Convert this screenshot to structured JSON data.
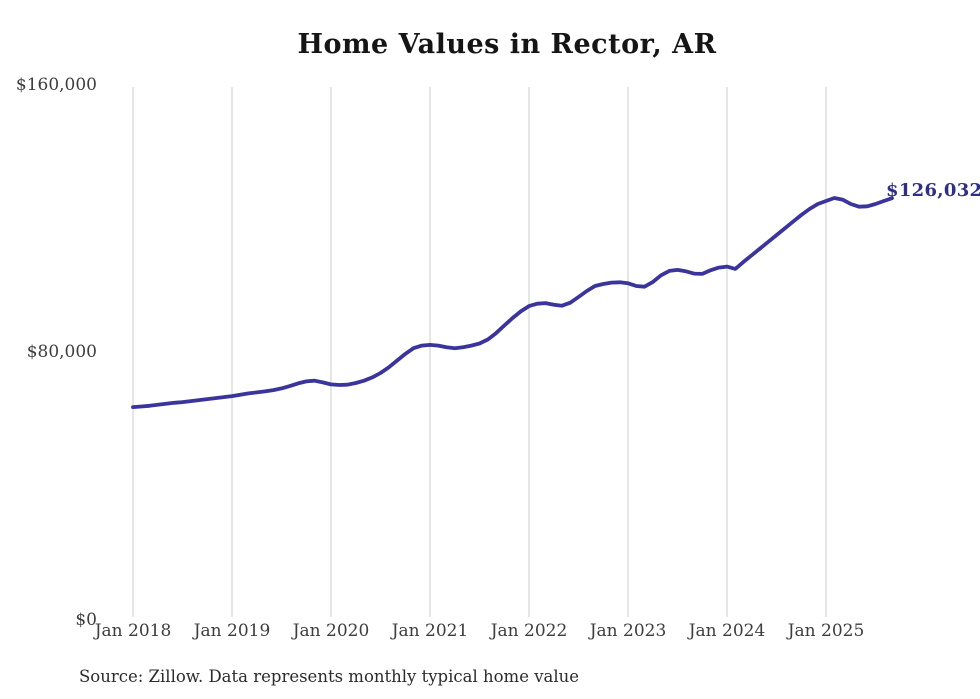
{
  "title": "Home Values in Rector, AR",
  "end_label": "$126,032",
  "source_note": "Source: Zillow. Data represents monthly typical home value",
  "colors": {
    "line": "#3a349c",
    "end_label": "#2f2f87",
    "gridline": "#cccccc",
    "tick_text": "#3d3d3d",
    "title_text": "#151515",
    "source_text": "#2b2b2b",
    "background": "#ffffff"
  },
  "chart_data": {
    "type": "line",
    "title": "Home Values in Rector, AR",
    "xlabel": "",
    "ylabel": "",
    "ylim": [
      0,
      160000
    ],
    "grid": "vertical-only",
    "legend": "none",
    "x_tick_labels": [
      "Jan 2018",
      "Jan 2019",
      "Jan 2020",
      "Jan 2021",
      "Jan 2022",
      "Jan 2023",
      "Jan 2024",
      "Jan 2025"
    ],
    "y_ticks": [
      {
        "label": "$0",
        "value": 0
      },
      {
        "label": "$80,000",
        "value": 80000
      },
      {
        "label": "$160,000",
        "value": 160000
      }
    ],
    "x_start_month": "2018-01",
    "x_end_month": "2025-09",
    "final_value": 126032,
    "final_value_label": "$126,032",
    "series": [
      {
        "name": "Monthly typical home value",
        "values": [
          63600,
          63800,
          64000,
          64300,
          64600,
          64900,
          65100,
          65400,
          65700,
          66000,
          66300,
          66600,
          66900,
          67300,
          67700,
          68000,
          68300,
          68700,
          69200,
          69900,
          70700,
          71300,
          71500,
          71000,
          70400,
          70200,
          70300,
          70800,
          71500,
          72500,
          73800,
          75500,
          77500,
          79500,
          81200,
          82000,
          82200,
          82000,
          81500,
          81200,
          81500,
          82000,
          82600,
          83800,
          85700,
          88000,
          90200,
          92200,
          93800,
          94500,
          94700,
          94200,
          93900,
          94800,
          96500,
          98300,
          99800,
          100400,
          100800,
          100900,
          100600,
          99800,
          99600,
          101000,
          103000,
          104300,
          104600,
          104200,
          103500,
          103400,
          104500,
          105300,
          105600,
          104900,
          107000,
          109000,
          111000,
          113000,
          115000,
          117000,
          119000,
          121000,
          122800,
          124300,
          125200,
          126100,
          125600,
          124300,
          123500,
          123600,
          124300,
          125200,
          126032
        ]
      }
    ]
  }
}
